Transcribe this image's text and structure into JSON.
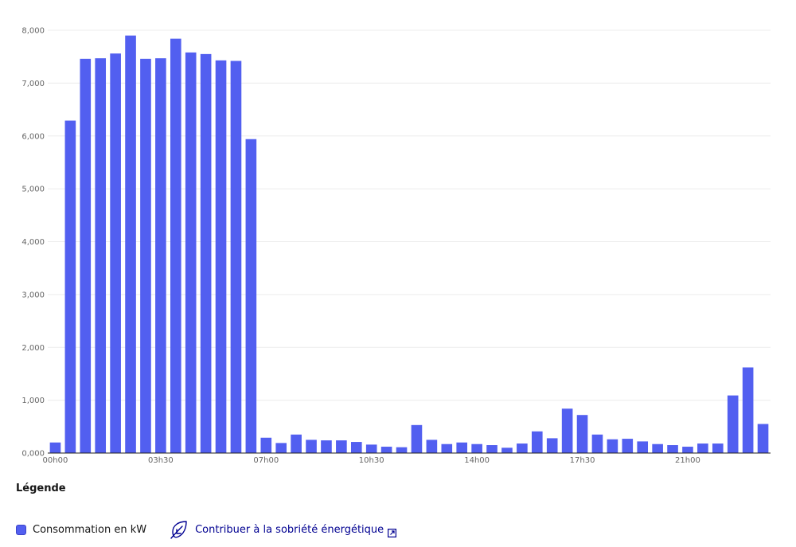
{
  "chart_data": {
    "type": "bar",
    "categories": [
      "00h00",
      "00h30",
      "01h00",
      "01h30",
      "02h00",
      "02h30",
      "03h00",
      "03h30",
      "04h00",
      "04h30",
      "05h00",
      "05h30",
      "06h00",
      "06h30",
      "07h00",
      "07h30",
      "08h00",
      "08h30",
      "09h00",
      "09h30",
      "10h00",
      "10h30",
      "11h00",
      "11h30",
      "12h00",
      "12h30",
      "13h00",
      "13h30",
      "14h00",
      "14h30",
      "15h00",
      "15h30",
      "16h00",
      "16h30",
      "17h00",
      "17h30",
      "18h00",
      "18h30",
      "19h00",
      "19h30",
      "20h00",
      "20h30",
      "21h00",
      "21h30",
      "22h00",
      "22h30",
      "23h00",
      "23h30"
    ],
    "series": [
      {
        "name": "Consommation en kW",
        "values": [
          200,
          6290,
          7460,
          7470,
          7560,
          7900,
          7460,
          7470,
          7840,
          7580,
          7550,
          7430,
          7420,
          5940,
          290,
          190,
          350,
          250,
          240,
          240,
          210,
          160,
          120,
          110,
          530,
          250,
          170,
          200,
          170,
          150,
          100,
          180,
          410,
          280,
          840,
          720,
          350,
          260,
          270,
          220,
          170,
          150,
          120,
          180,
          180,
          1090,
          1620,
          550
        ]
      }
    ],
    "color": "#525ff0",
    "xticks": [
      "00h00",
      "03h30",
      "07h00",
      "10h30",
      "14h00",
      "17h30",
      "21h00"
    ],
    "yticks": [
      "0,000",
      "1,000",
      "2,000",
      "3,000",
      "4,000",
      "5,000",
      "6,000",
      "7,000",
      "8,000"
    ],
    "ylim": [
      0,
      8000
    ],
    "grid": true
  },
  "legend": {
    "title": "Légende",
    "series_label": "Consommation en kW",
    "link_text": "Contribuer à la sobriété énergétique"
  }
}
